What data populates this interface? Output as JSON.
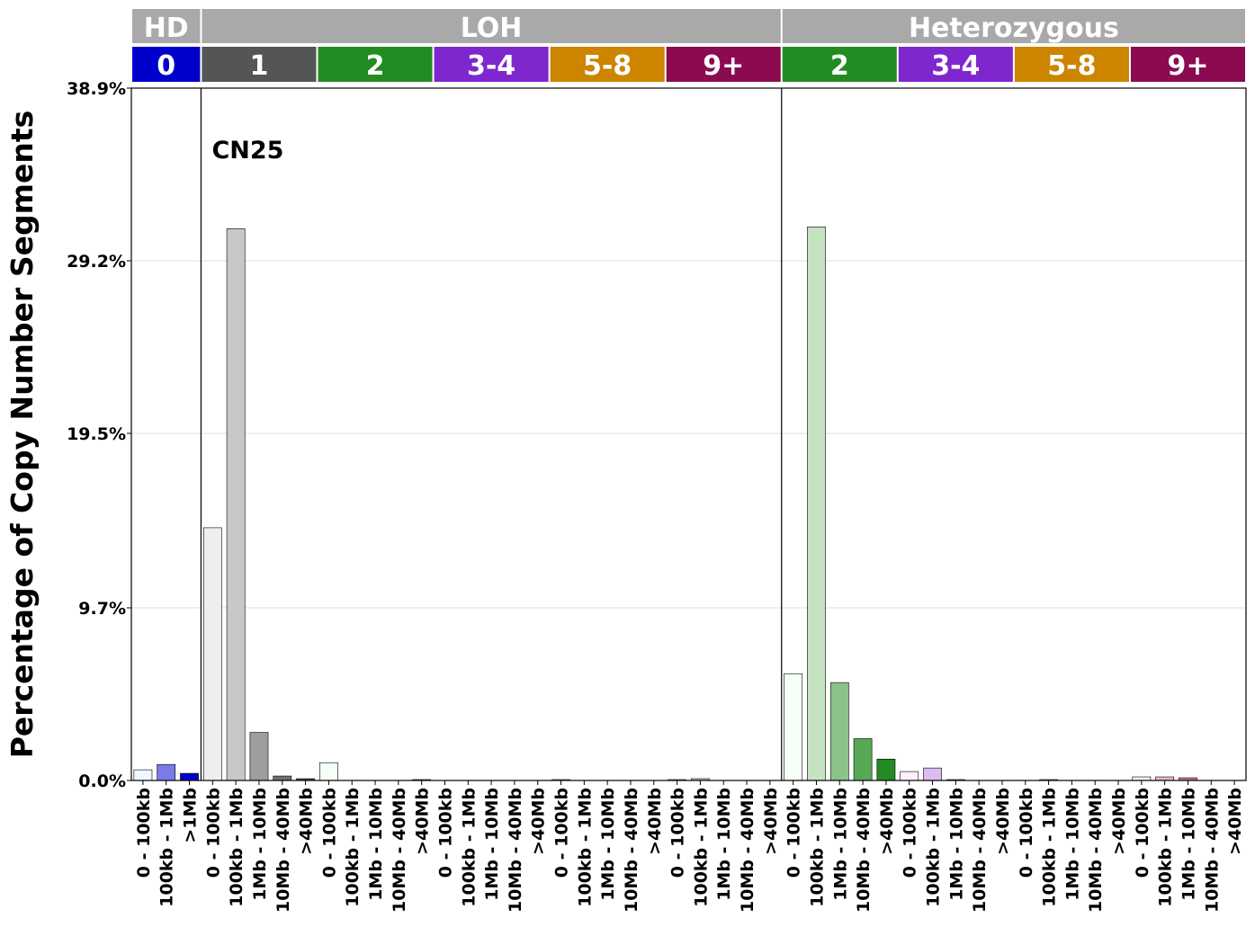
{
  "chart_data": {
    "type": "bar",
    "title": "",
    "xlabel": "",
    "ylabel": "Percentage of Copy Number Segments",
    "annotation": "CN25",
    "ylim": [
      0,
      38.9
    ],
    "yticks": [
      "0.0%",
      "9.7%",
      "19.5%",
      "29.2%",
      "38.9%"
    ],
    "ytick_values": [
      0,
      9.7,
      19.5,
      29.2,
      38.9
    ],
    "top_groups": [
      {
        "label": "HD",
        "span": 3
      },
      {
        "label": "LOH",
        "span": 25
      },
      {
        "label": "Heterozygous",
        "span": 20
      }
    ],
    "cn_groups": [
      {
        "label": "0",
        "span": 3,
        "color": "#0000CD"
      },
      {
        "label": "1",
        "span": 5,
        "color": "#555555"
      },
      {
        "label": "2",
        "span": 5,
        "color": "#228B22"
      },
      {
        "label": "3-4",
        "span": 5,
        "color": "#7F27CF"
      },
      {
        "label": "5-8",
        "span": 5,
        "color": "#CD8500"
      },
      {
        "label": "9+",
        "span": 5,
        "color": "#8B0A50"
      },
      {
        "label": "2",
        "span": 5,
        "color": "#228B22"
      },
      {
        "label": "3-4",
        "span": 5,
        "color": "#7F27CF"
      },
      {
        "label": "5-8",
        "span": 5,
        "color": "#CD8500"
      },
      {
        "label": "9+",
        "span": 5,
        "color": "#8B0A50"
      }
    ],
    "categories": [
      "0 - 100kb",
      "100kb - 1Mb",
      ">1Mb",
      "0 - 100kb",
      "100kb - 1Mb",
      "1Mb - 10Mb",
      "10Mb - 40Mb",
      ">40Mb",
      "0 - 100kb",
      "100kb - 1Mb",
      "1Mb - 10Mb",
      "10Mb - 40Mb",
      ">40Mb",
      "0 - 100kb",
      "100kb - 1Mb",
      "1Mb - 10Mb",
      "10Mb - 40Mb",
      ">40Mb",
      "0 - 100kb",
      "100kb - 1Mb",
      "1Mb - 10Mb",
      "10Mb - 40Mb",
      ">40Mb",
      "0 - 100kb",
      "100kb - 1Mb",
      "1Mb - 10Mb",
      "10Mb - 40Mb",
      ">40Mb",
      "0 - 100kb",
      "100kb - 1Mb",
      "1Mb - 10Mb",
      "10Mb - 40Mb",
      ">40Mb",
      "0 - 100kb",
      "100kb - 1Mb",
      "1Mb - 10Mb",
      "10Mb - 40Mb",
      ">40Mb",
      "0 - 100kb",
      "100kb - 1Mb",
      "1Mb - 10Mb",
      "10Mb - 40Mb",
      ">40Mb",
      "0 - 100kb",
      "100kb - 1Mb",
      "1Mb - 10Mb",
      "10Mb - 40Mb",
      ">40Mb"
    ],
    "values": [
      0.6,
      0.9,
      0.4,
      14.2,
      31.0,
      2.7,
      0.25,
      0.1,
      1.0,
      0,
      0,
      0,
      0.05,
      0,
      0,
      0,
      0,
      0,
      0.05,
      0,
      0,
      0,
      0,
      0.05,
      0.1,
      0,
      0,
      0,
      6.0,
      31.1,
      5.5,
      2.35,
      1.2,
      0.5,
      0.7,
      0.05,
      0,
      0,
      0,
      0.05,
      0,
      0,
      0,
      0.2,
      0.2,
      0.15,
      0,
      0
    ],
    "bar_colors": [
      "#F0F8FF",
      "#7A7AE8",
      "#0000CD",
      "#EEEEEE",
      "#C8C8C8",
      "#9E9E9E",
      "#707070",
      "#4A4A4A",
      "#F5FFF5",
      "#C5E3C0",
      "#8CC38A",
      "#57A855",
      "#228B22",
      "#F8F0FF",
      "#DCBBF2",
      "#B581E6",
      "#9A55DB",
      "#7F27CF",
      "#FFF8EE",
      "#F5D9A8",
      "#E8B660",
      "#DA9E30",
      "#CD8500",
      "#FFF0F5",
      "#E6B9CA",
      "#C27798",
      "#A74578",
      "#8B0A50",
      "#F5FFF5",
      "#C5E3C0",
      "#8CC38A",
      "#57A855",
      "#228B22",
      "#FFF0FF",
      "#DCBBF2",
      "#B581E6",
      "#9A55DB",
      "#7F27CF",
      "#FFF8EE",
      "#F5D9A8",
      "#E8B660",
      "#DA9E30",
      "#CD8500",
      "#FFF0F5",
      "#E6B9CA",
      "#C27798",
      "#A74578",
      "#8B0A50"
    ],
    "grid": true,
    "legend": "none"
  }
}
